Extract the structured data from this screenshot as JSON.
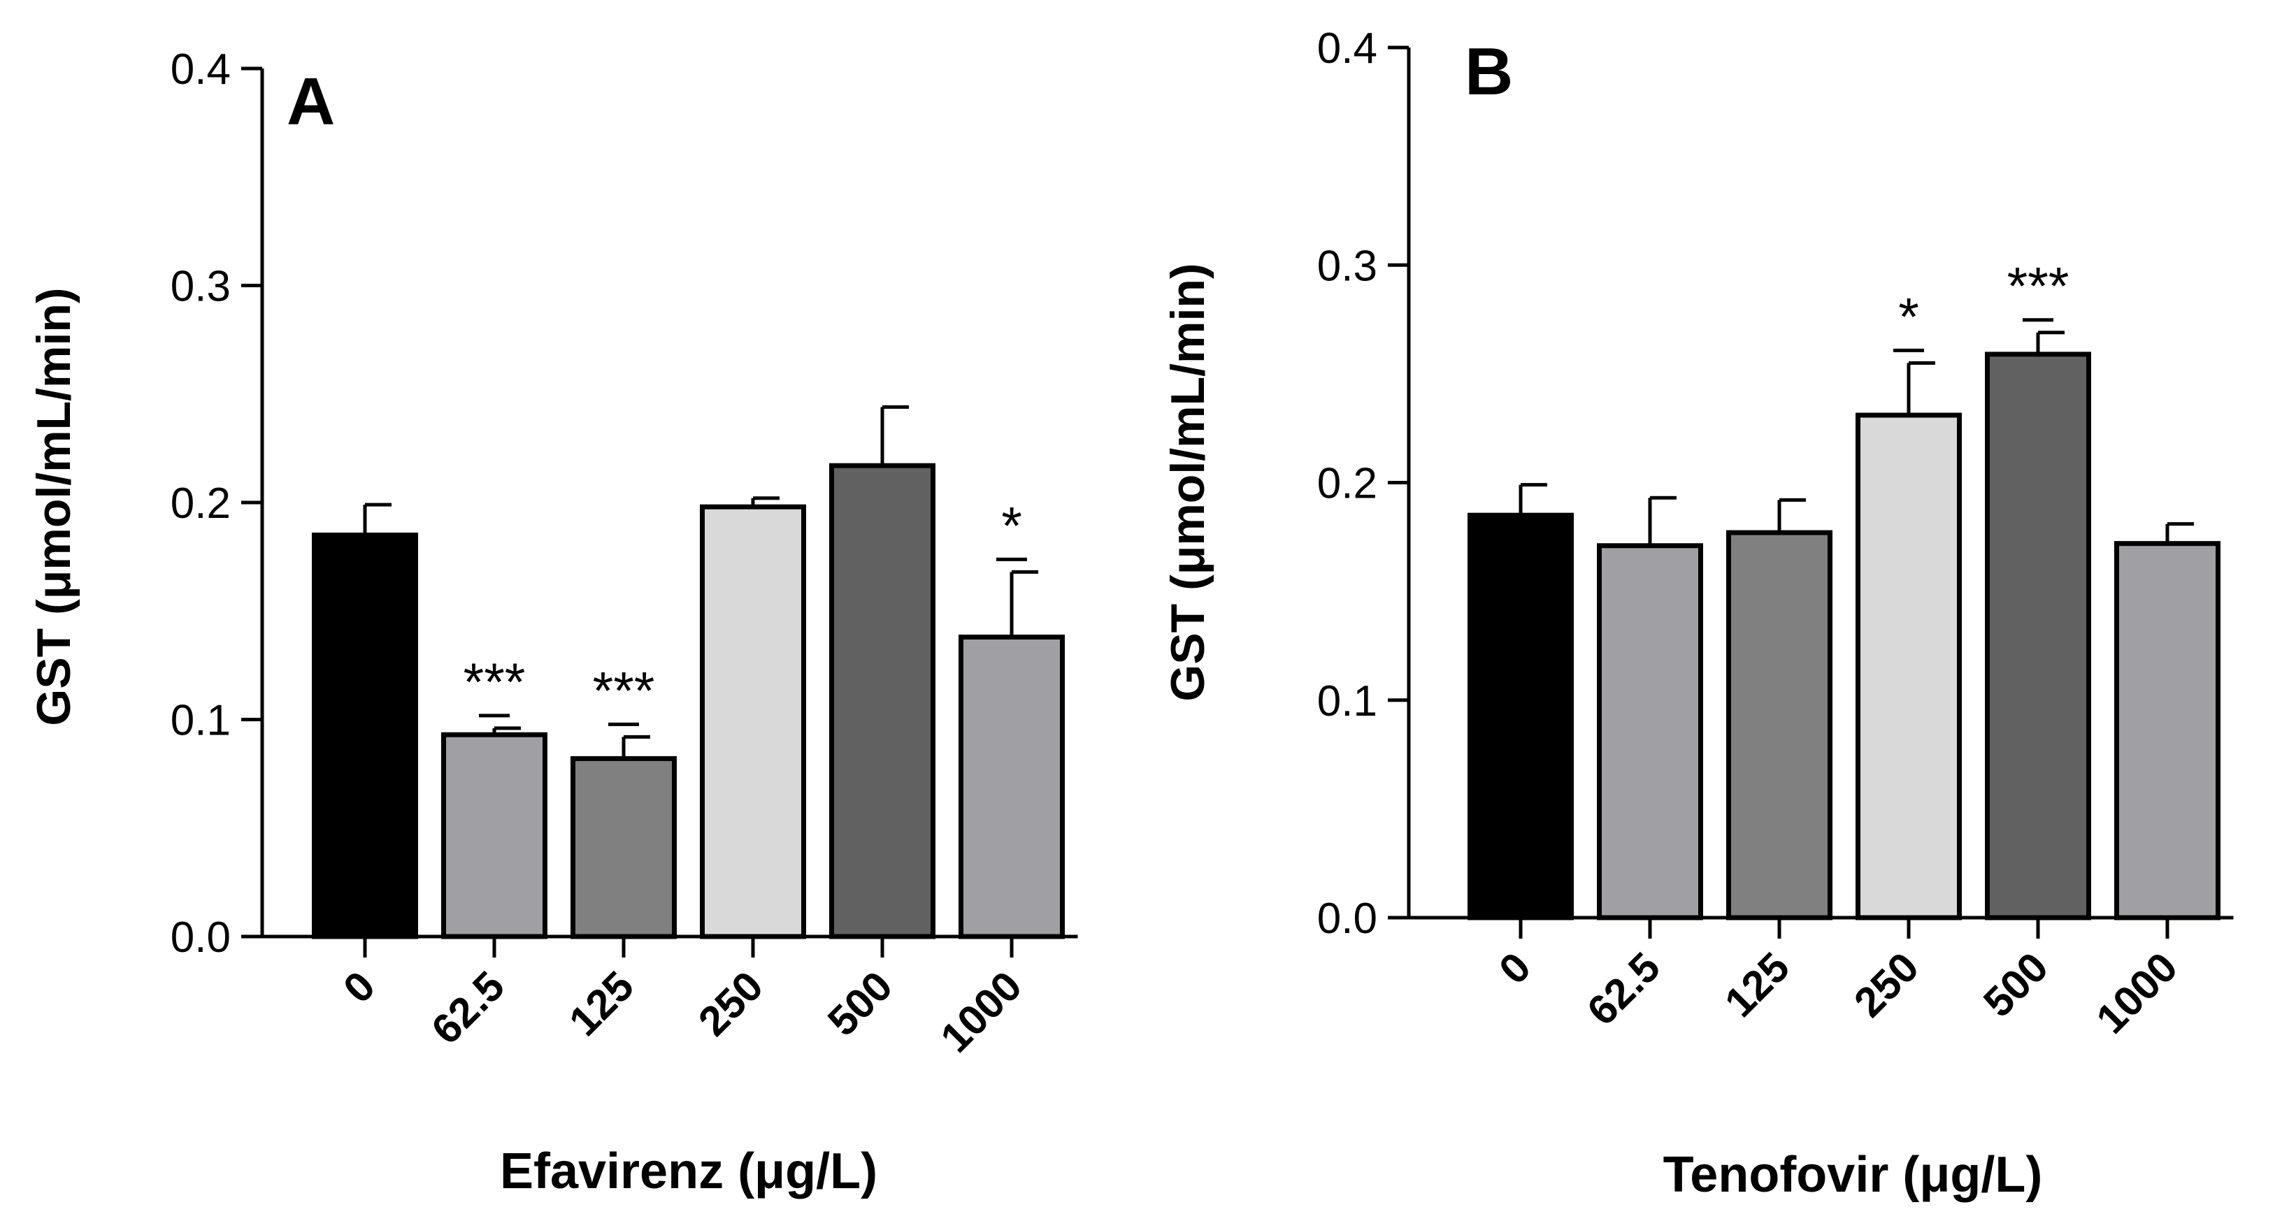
{
  "chart_data": [
    {
      "type": "bar",
      "panel": "A",
      "categories": [
        "0",
        "62.5",
        "125",
        "250",
        "500",
        "1000"
      ],
      "values": [
        0.185,
        0.093,
        0.082,
        0.198,
        0.217,
        0.138
      ],
      "errors": [
        0.014,
        0.003,
        0.01,
        0.004,
        0.027,
        0.03
      ],
      "colors": [
        "#000000",
        "#a0a0a4",
        "#808080",
        "#d9d9d9",
        "#616161",
        "#a0a0a4"
      ],
      "significance": [
        "",
        "***",
        "***",
        "",
        "",
        "*"
      ],
      "xlabel": "Efavirenz (μg/L)",
      "ylabel": "GST (μmol/mL/min)",
      "ylim": [
        0,
        0.4
      ],
      "yticks": [
        "0.0",
        "0.1",
        "0.2",
        "0.3",
        "0.4"
      ]
    },
    {
      "type": "bar",
      "panel": "B",
      "categories": [
        "0",
        "62.5",
        "125",
        "250",
        "500",
        "1000"
      ],
      "values": [
        0.185,
        0.171,
        0.177,
        0.231,
        0.259,
        0.172
      ],
      "errors": [
        0.014,
        0.022,
        0.015,
        0.024,
        0.01,
        0.009
      ],
      "colors": [
        "#000000",
        "#a0a0a4",
        "#808080",
        "#d9d9d9",
        "#616161",
        "#a0a0a4"
      ],
      "significance": [
        "",
        "",
        "",
        "*",
        "***",
        ""
      ],
      "xlabel": "Tenofovir (μg/L)",
      "ylabel": "GST (μmol/mL/min)",
      "ylim": [
        0,
        0.4
      ],
      "yticks": [
        "0.0",
        "0.1",
        "0.2",
        "0.3",
        "0.4"
      ]
    }
  ]
}
